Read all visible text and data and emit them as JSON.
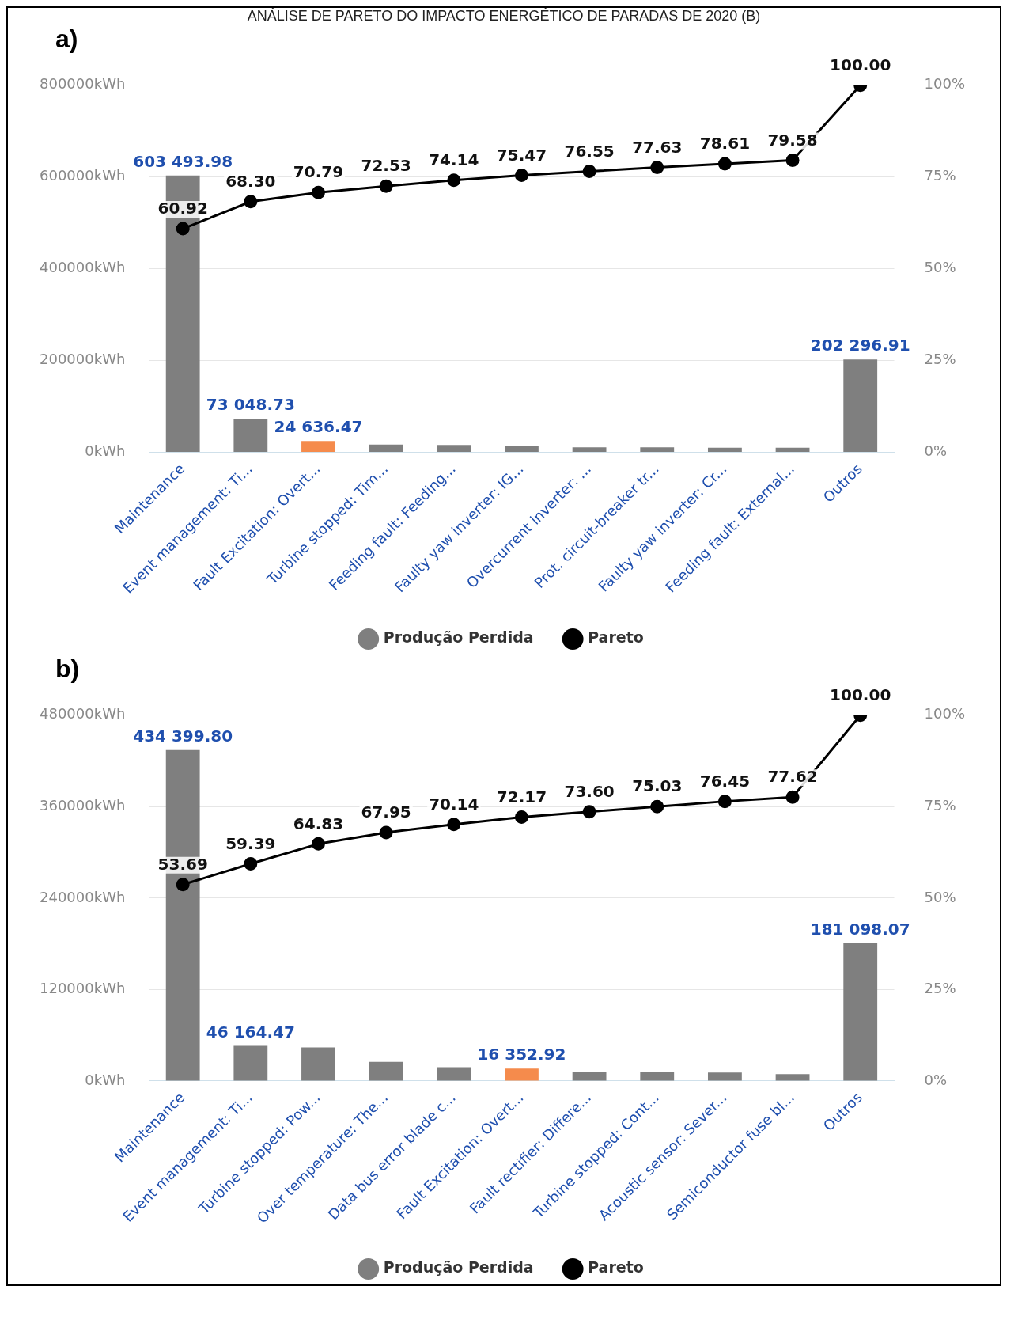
{
  "chart_data": [
    {
      "type": "bar",
      "title": "ANÁLISE DE PARETO DO IMPACTO ENERGÉTICO DE PARADAS DE 2020 (B)",
      "subtitle": "a)",
      "categories": [
        "Maintenance",
        "Event management: Ti...",
        "Fault Excitation: Overt...",
        "Turbine stopped: Tim...",
        "Feeding fault: Feeding...",
        "Faulty yaw inverter: IG...",
        "Overcurrent inverter: ...",
        "Prot. circuit-breaker tr...",
        "Faulty yaw inverter: Cr...",
        "Feeding fault: External...",
        "Outros"
      ],
      "series": [
        {
          "name": "Produção Perdida",
          "color": "#7f7f7f",
          "colors": [
            "#7f7f7f",
            "#7f7f7f",
            "#f58b4c",
            "#7f7f7f",
            "#7f7f7f",
            "#7f7f7f",
            "#7f7f7f",
            "#7f7f7f",
            "#7f7f7f",
            "#7f7f7f",
            "#7f7f7f"
          ],
          "values": [
            603493.98,
            73048.73,
            24636.47,
            17000,
            16000,
            13000,
            11000,
            11000,
            10000,
            10000,
            202296.91
          ],
          "value_labels": [
            "603 493.98",
            "73 048.73",
            "24 636.47",
            null,
            null,
            null,
            null,
            null,
            null,
            null,
            "202 296.91"
          ]
        },
        {
          "name": "Pareto",
          "type": "line",
          "axis": "y2",
          "color": "#000000",
          "values": [
            60.92,
            68.3,
            70.79,
            72.53,
            74.14,
            75.47,
            76.55,
            77.63,
            78.61,
            79.58,
            100.0
          ],
          "value_labels": [
            "60.92",
            "68.30",
            "70.79",
            "72.53",
            "74.14",
            "75.47",
            "76.55",
            "77.63",
            "78.61",
            "79.58",
            "100.00"
          ]
        }
      ],
      "ylim": [
        0,
        800000
      ],
      "yticks": [
        {
          "value": 0,
          "label": "0kWh"
        },
        {
          "value": 200000,
          "label": "200000kWh"
        },
        {
          "value": 400000,
          "label": "400000kWh"
        },
        {
          "value": 600000,
          "label": "600000kWh"
        },
        {
          "value": 800000,
          "label": "800000kWh"
        }
      ],
      "y2lim": [
        0,
        100
      ],
      "y2ticks": [
        {
          "value": 0,
          "label": "0%"
        },
        {
          "value": 25,
          "label": "25%"
        },
        {
          "value": 50,
          "label": "50%"
        },
        {
          "value": 75,
          "label": "75%"
        },
        {
          "value": 100,
          "label": "100%"
        }
      ],
      "grid": "y",
      "legend": "bottom",
      "marker": "circle"
    },
    {
      "type": "bar",
      "subtitle": "b)",
      "categories": [
        "Maintenance",
        "Event management: Ti...",
        "Turbine stopped: Pow...",
        "Over temperature: The...",
        "Data bus error blade c...",
        "Fault Excitation: Overt...",
        "Fault rectifier: Differe...",
        "Turbine stopped: Cont...",
        "Acoustic sensor: Sever...",
        "Semiconductor fuse bl...",
        "Outros"
      ],
      "series": [
        {
          "name": "Produção Perdida",
          "color": "#7f7f7f",
          "colors": [
            "#7f7f7f",
            "#7f7f7f",
            "#7f7f7f",
            "#7f7f7f",
            "#7f7f7f",
            "#f58b4c",
            "#7f7f7f",
            "#7f7f7f",
            "#7f7f7f",
            "#7f7f7f",
            "#7f7f7f"
          ],
          "values": [
            434399.8,
            46164.47,
            44000,
            25000,
            18000,
            16352.92,
            12000,
            12000,
            11000,
            9000,
            181098.07
          ],
          "value_labels": [
            "434 399.80",
            "46 164.47",
            null,
            null,
            null,
            "16 352.92",
            null,
            null,
            null,
            null,
            "181 098.07"
          ]
        },
        {
          "name": "Pareto",
          "type": "line",
          "axis": "y2",
          "color": "#000000",
          "values": [
            53.69,
            59.39,
            64.83,
            67.95,
            70.14,
            72.17,
            73.6,
            75.03,
            76.45,
            77.62,
            100.0
          ],
          "value_labels": [
            "53.69",
            "59.39",
            "64.83",
            "67.95",
            "70.14",
            "72.17",
            "73.60",
            "75.03",
            "76.45",
            "77.62",
            "100.00"
          ]
        }
      ],
      "ylim": [
        0,
        480000
      ],
      "yticks": [
        {
          "value": 0,
          "label": "0kWh"
        },
        {
          "value": 120000,
          "label": "120000kWh"
        },
        {
          "value": 240000,
          "label": "240000kWh"
        },
        {
          "value": 360000,
          "label": "360000kWh"
        },
        {
          "value": 480000,
          "label": "480000kWh"
        }
      ],
      "y2lim": [
        0,
        100
      ],
      "y2ticks": [
        {
          "value": 0,
          "label": "0%"
        },
        {
          "value": 25,
          "label": "25%"
        },
        {
          "value": 50,
          "label": "50%"
        },
        {
          "value": 75,
          "label": "75%"
        },
        {
          "value": 100,
          "label": "100%"
        }
      ],
      "grid": "y",
      "legend": "bottom",
      "marker": "circle"
    }
  ]
}
